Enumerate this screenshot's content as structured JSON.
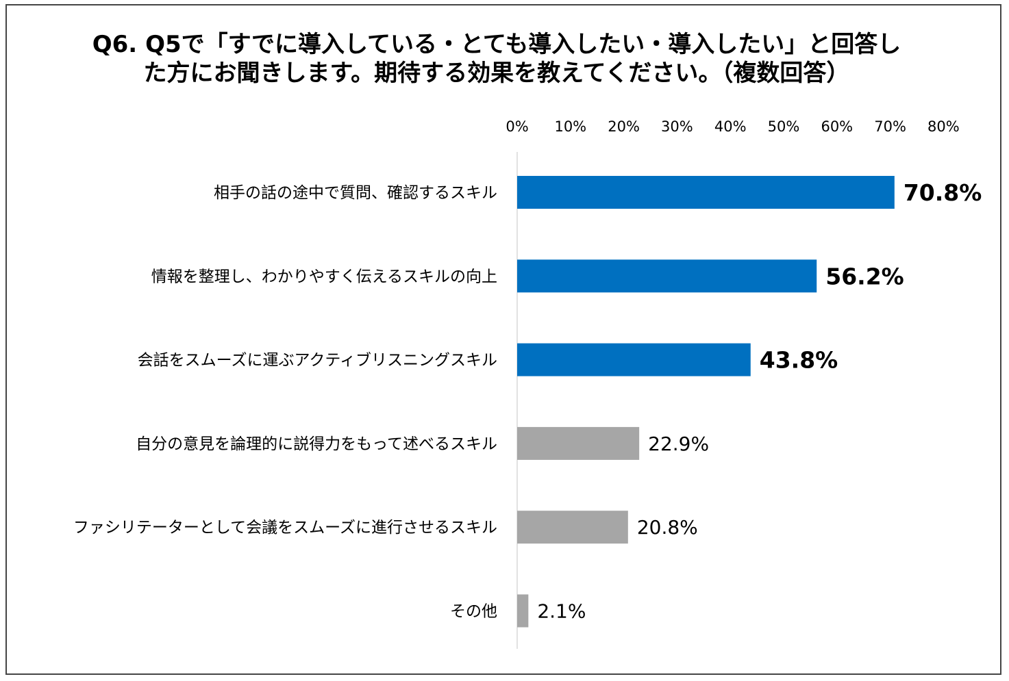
{
  "title": {
    "line1": "Q6.  Q5で「すでに導入している・とても導入したい・導入したい」と回答し",
    "line2": "た方にお聞きします。期待する効果を教えてください。（複数回答）"
  },
  "chart_data": {
    "type": "bar",
    "orientation": "horizontal",
    "title": "Q6.  Q5で「すでに導入している・とても導入したい・導入したい」と回答した方にお聞きします。期待する効果を教えてください。（複数回答）",
    "categories": [
      "相手の話の途中で質問、確認するスキル",
      "情報を整理し、わかりやすく伝えるスキルの向上",
      "会話をスムーズに運ぶアクティブリスニングスキル",
      "自分の意見を論理的に説得力をもって述べるスキル",
      "ファシリテーターとして会議をスムーズに進行させるスキル",
      "その他"
    ],
    "values": [
      70.8,
      56.2,
      43.8,
      22.9,
      20.8,
      2.1
    ],
    "value_labels": [
      "70.8%",
      "56.2%",
      "43.8%",
      "22.9%",
      "20.8%",
      "2.1%"
    ],
    "highlighted": [
      true,
      true,
      true,
      false,
      false,
      false
    ],
    "xlim": [
      0,
      80
    ],
    "xticks": [
      "0%",
      "10%",
      "20%",
      "30%",
      "40%",
      "50%",
      "60%",
      "70%",
      "80%"
    ],
    "xaxis_position": "top",
    "grid": false,
    "colors": {
      "highlight": "#0070C0",
      "normal": "#A6A6A6",
      "axis": "#D9D9D9"
    }
  }
}
